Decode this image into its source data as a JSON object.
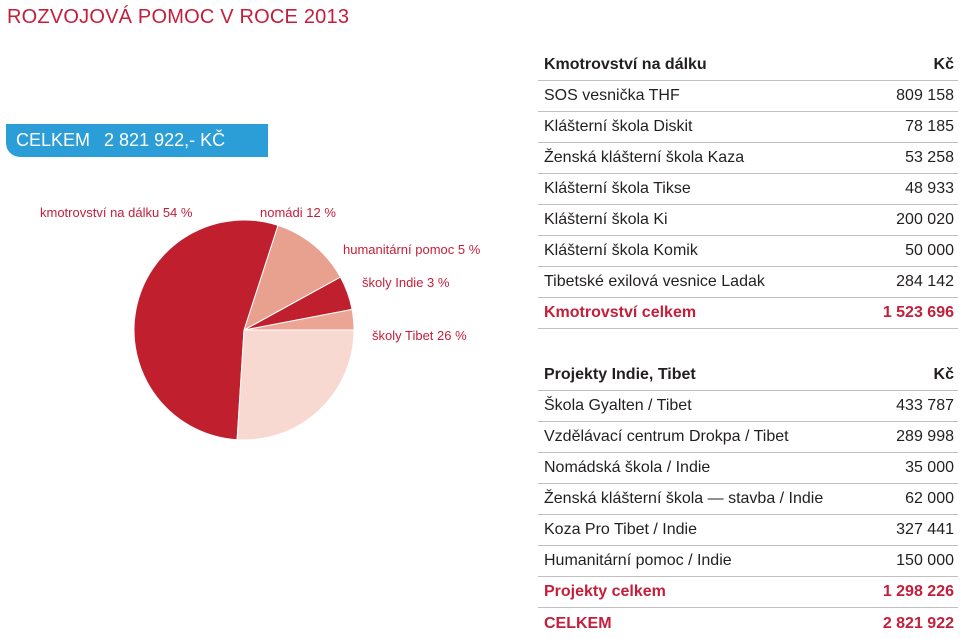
{
  "title": "ROZVOJOVÁ POMOC V ROCE 2013",
  "total_badge": {
    "label": "CELKEM",
    "value": "2 821 922,- KČ"
  },
  "colors": {
    "accent": "#c41e3a",
    "badge": "#2b9ed8"
  },
  "chart_data": {
    "type": "pie",
    "slices": [
      {
        "label": "kmotrovství na dálku 54 %",
        "value": 54,
        "color": "#c0202e"
      },
      {
        "label": "školy Tibet 26 %",
        "value": 26,
        "color": "#f8d9d1"
      },
      {
        "label": "školy Indie 3 %",
        "value": 3,
        "color": "#eaa595"
      },
      {
        "label": "humanitární pomoc 5 %",
        "value": 5,
        "color": "#c0202e"
      },
      {
        "label": "nomádi 12 %",
        "value": 12,
        "color": "#e8a08f"
      }
    ]
  },
  "table1": {
    "header": {
      "name": "Kmotrovství na dálku",
      "unit": "Kč"
    },
    "rows": [
      {
        "name": "SOS vesnička THF",
        "value": "809 158"
      },
      {
        "name": "Klášterní škola Diskit",
        "value": "78 185"
      },
      {
        "name": "Ženská klášterní škola Kaza",
        "value": "53 258"
      },
      {
        "name": "Klášterní škola Tikse",
        "value": "48 933"
      },
      {
        "name": "Klášterní škola Ki",
        "value": "200 020"
      },
      {
        "name": "Klášterní škola Komik",
        "value": "50 000"
      },
      {
        "name": "Tibetské exilová vesnice Ladak",
        "value": "284 142"
      }
    ],
    "total": {
      "name": "Kmotrovství celkem",
      "value": "1 523 696"
    }
  },
  "table2": {
    "header": {
      "name": "Projekty Indie, Tibet",
      "unit": "Kč"
    },
    "rows": [
      {
        "name": "Škola Gyalten / Tibet",
        "value": "433 787"
      },
      {
        "name": "Vzdělávací centrum Drokpa / Tibet",
        "value": "289 998"
      },
      {
        "name": "Nomádská škola / Indie",
        "value": "35 000"
      },
      {
        "name": "Ženská klášterní škola — stavba / Indie",
        "value": "62 000"
      },
      {
        "name": "Koza Pro Tibet / Indie",
        "value": "327 441"
      },
      {
        "name": "Humanitární pomoc / Indie",
        "value": "150 000"
      }
    ],
    "total": {
      "name": "Projekty celkem",
      "value": "1 298 226"
    },
    "grand_total": {
      "name": "CELKEM",
      "value": "2 821 922"
    }
  }
}
